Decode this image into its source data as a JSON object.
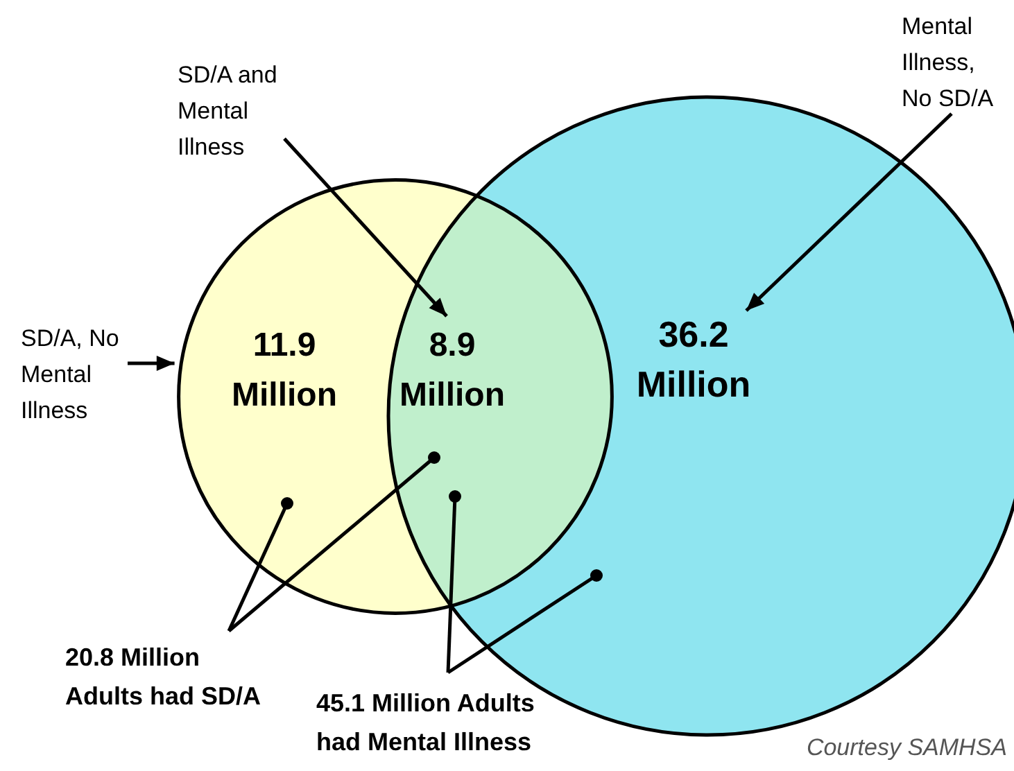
{
  "chart_data": {
    "type": "other",
    "categories": [
      "SD/A, No Mental Illness",
      "SD/A and Mental Illness",
      "Mental Illness, No SD/A"
    ],
    "values": [
      11.9,
      8.9,
      36.2
    ],
    "value_labels": [
      "11.9 Million",
      "8.9 Million",
      "36.2 Million"
    ],
    "colors": [
      "#ffffcc",
      "#c0efcc",
      "#8fe5f0"
    ],
    "annotations": [
      "20.8 Million Adults had SD/A",
      "45.1 Million Adults had Mental Illness",
      "Courtesy SAMHSA"
    ]
  }
}
